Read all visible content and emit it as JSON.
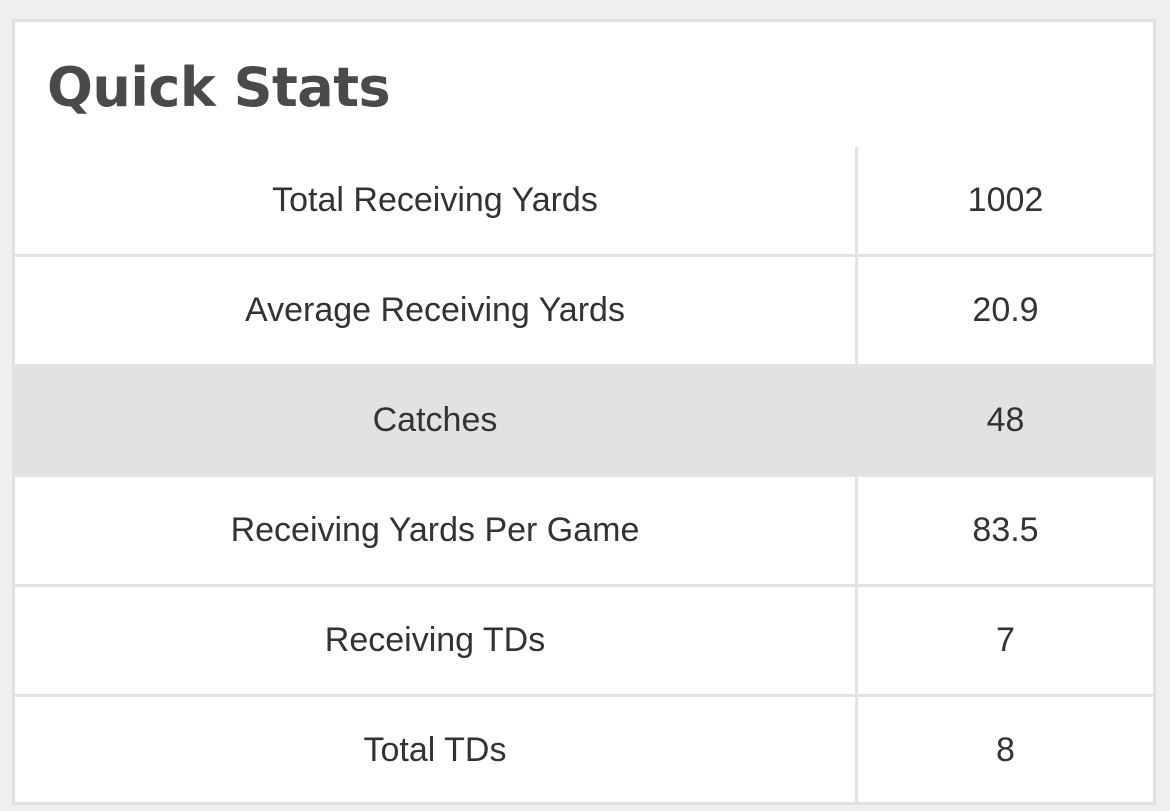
{
  "widget": {
    "title": "Quick Stats",
    "highlight_color": "#e2e2e2",
    "rows": [
      {
        "label": "Total Receiving Yards",
        "value": "1002"
      },
      {
        "label": "Average Receiving Yards",
        "value": "20.9"
      },
      {
        "label": "Catches",
        "value": "48",
        "highlighted": true
      },
      {
        "label": "Receiving Yards Per Game",
        "value": "83.5"
      },
      {
        "label": "Receiving TDs",
        "value": "7"
      },
      {
        "label": "Total TDs",
        "value": "8"
      }
    ]
  }
}
